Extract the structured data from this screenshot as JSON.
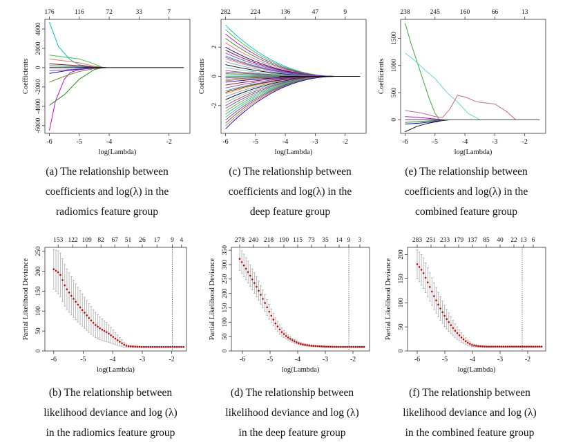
{
  "chart_data": [
    {
      "id": "a",
      "type": "line",
      "xlabel": "log(Lambda)",
      "ylabel": "Coefficients",
      "xlim": [
        -6.15,
        -1.3
      ],
      "ylim": [
        -6800,
        5000
      ],
      "xticks": [
        "-6",
        "-5",
        "-4",
        "-2"
      ],
      "xtick_values": [
        -6,
        -5,
        -4,
        -2
      ],
      "yticks": [
        "-6000",
        "-4000",
        "-2000",
        "0",
        "2000",
        "4000"
      ],
      "ytick_values": [
        -6000,
        -4000,
        -2000,
        0,
        2000,
        4000
      ],
      "top_labels": [
        "176",
        "116",
        "72",
        "33",
        "7"
      ],
      "top_values": [
        -6,
        -5,
        -4,
        -3,
        -2
      ],
      "series": [
        {
          "color": "#00bfc4",
          "x": [
            -6,
            -5.7,
            -5.3,
            -5,
            -4.6,
            -4.2
          ],
          "y": [
            4700,
            2200,
            800,
            300,
            80,
            0
          ]
        },
        {
          "color": "#33cc33",
          "x": [
            -6,
            -5.5,
            -5,
            -4.6,
            -4.2
          ],
          "y": [
            1300,
            1100,
            900,
            500,
            0
          ]
        },
        {
          "color": "#cc00cc",
          "x": [
            -6,
            -5.8,
            -5.5,
            -5.3,
            -5,
            -4.5,
            -4.2
          ],
          "y": [
            -6500,
            -3500,
            -1200,
            -500,
            -200,
            -50,
            0
          ]
        },
        {
          "color": "#228b22",
          "x": [
            -6,
            -5.5,
            -5,
            -4.5,
            -4.2
          ],
          "y": [
            -3900,
            -2800,
            -1200,
            -200,
            0
          ]
        },
        {
          "color": "#6b8e23",
          "x": [
            -6,
            -5.5,
            -5,
            -4.5,
            -4.1
          ],
          "y": [
            -1500,
            -900,
            -400,
            -100,
            0
          ]
        },
        {
          "color": "#ff6666",
          "x": [
            -6,
            -5.5,
            -5,
            -4.5,
            -4.1
          ],
          "y": [
            900,
            700,
            500,
            150,
            0
          ]
        },
        {
          "color": "#0000cc",
          "x": [
            -6,
            -5.5,
            -5,
            -4.5,
            -4.1
          ],
          "y": [
            -600,
            -350,
            -150,
            -30,
            0
          ]
        },
        {
          "color": "#990000",
          "x": [
            -6,
            -5.5,
            -5,
            -4.5,
            -4.1
          ],
          "y": [
            400,
            300,
            200,
            60,
            0
          ]
        },
        {
          "color": "#9933ff",
          "x": [
            -6,
            -5.5,
            -5,
            -4.5,
            -4.1
          ],
          "y": [
            -300,
            -250,
            -120,
            -20,
            0
          ]
        },
        {
          "color": "#009999",
          "x": [
            -6,
            -5.5,
            -5,
            -4.5,
            -4.1
          ],
          "y": [
            200,
            150,
            80,
            20,
            0
          ]
        },
        {
          "color": "#000000",
          "x": [
            -6,
            -4.0,
            -1.5
          ],
          "y": [
            0,
            0,
            0
          ]
        }
      ]
    },
    {
      "id": "c",
      "type": "line",
      "xlabel": "log(Lambda)",
      "ylabel": "Coefficients",
      "xlim": [
        -6.15,
        -1.3
      ],
      "ylim": [
        -3.9,
        3.9
      ],
      "xticks": [
        "-6",
        "-5",
        "-4",
        "-3",
        "-2"
      ],
      "xtick_values": [
        -6,
        -5,
        -4,
        -3,
        -2
      ],
      "yticks": [
        "-2",
        "0",
        "2"
      ],
      "ytick_values": [
        -2,
        0,
        2
      ],
      "top_labels": [
        "282",
        "224",
        "136",
        "47",
        "9"
      ],
      "top_values": [
        -6,
        -5,
        -4,
        -3,
        -2
      ],
      "bundle": {
        "count": 40,
        "x_start": -6,
        "x_end": -2.2,
        "start_values": [
          3.5,
          3.2,
          2.9,
          2.6,
          2.3,
          2.0,
          1.8,
          1.6,
          1.4,
          1.2,
          1.0,
          0.8,
          0.6,
          0.4,
          0.3,
          0.2,
          0.1,
          0.0,
          -0.1,
          -0.2,
          -0.3,
          -0.4,
          -0.6,
          -0.8,
          -1.0,
          -1.2,
          -1.4,
          -1.6,
          -1.8,
          -2.0,
          -2.2,
          -2.4,
          -2.6,
          -2.8,
          -3.0,
          -3.2,
          -3.4,
          -3.6,
          -1.1,
          1.3
        ],
        "colors": [
          "#00bfc4",
          "#33cc33",
          "#cc00cc",
          "#228b22",
          "#ff6666",
          "#0000cc",
          "#990000",
          "#9933ff",
          "#009999",
          "#ff9900",
          "#6699ff",
          "#000000",
          "#66cc99",
          "#cc3366",
          "#3366cc",
          "#999900"
        ]
      }
    },
    {
      "id": "e",
      "type": "line",
      "xlabel": "log(Lambda)",
      "ylabel": "Coefficients",
      "xlim": [
        -6.15,
        -1.3
      ],
      "ylim": [
        -250,
        1850
      ],
      "xticks": [
        "-6",
        "-5",
        "-4",
        "-3",
        "-2"
      ],
      "xtick_values": [
        -6,
        -5,
        -4,
        -3,
        -2
      ],
      "yticks": [
        "0",
        "500",
        "1000",
        "1500"
      ],
      "ytick_values": [
        0,
        500,
        1000,
        1500
      ],
      "top_labels": [
        "238",
        "245",
        "160",
        "66",
        "13"
      ],
      "top_values": [
        -6,
        -5,
        -4,
        -3,
        -2
      ],
      "series": [
        {
          "color": "#33aa33",
          "x": [
            -6,
            -5.8,
            -5.5,
            -5.2,
            -5,
            -4.85
          ],
          "y": [
            1780,
            1400,
            900,
            400,
            120,
            0
          ]
        },
        {
          "color": "#66ddcc",
          "x": [
            -6,
            -5.7,
            -5.3,
            -5,
            -4.6,
            -4.2,
            -3.9,
            -3.5
          ],
          "y": [
            1230,
            1100,
            900,
            760,
            500,
            300,
            120,
            0
          ]
        },
        {
          "color": "#cc6688",
          "x": [
            -6,
            -5.5,
            -5,
            -4.75,
            -4.5,
            -4.25,
            -4.0,
            -3.6,
            -3.0,
            -2.6,
            -2.3
          ],
          "y": [
            170,
            130,
            60,
            40,
            200,
            450,
            420,
            330,
            290,
            150,
            0
          ]
        },
        {
          "color": "#000000",
          "x": [
            -6,
            -5.6,
            -5.2,
            -4.8,
            -4.5
          ],
          "y": [
            -220,
            -120,
            -60,
            -20,
            0
          ]
        },
        {
          "color": "#0000cc",
          "x": [
            -6,
            -5.5,
            -5,
            -4.6
          ],
          "y": [
            -80,
            -60,
            -30,
            0
          ]
        },
        {
          "color": "#228b22",
          "x": [
            -6,
            -5.5,
            -5,
            -4.5
          ],
          "y": [
            -50,
            -30,
            -15,
            0
          ]
        },
        {
          "color": "#cc00cc",
          "x": [
            -6,
            -5.5,
            -5,
            -4.7
          ],
          "y": [
            60,
            40,
            15,
            0
          ]
        },
        {
          "color": "#444444",
          "x": [
            -6,
            -4.0,
            -1.5
          ],
          "y": [
            0,
            0,
            0
          ]
        }
      ]
    },
    {
      "id": "b",
      "type": "errorbar",
      "xlabel": "log(Lambda)",
      "ylabel": "Partial Likelihood Deviance",
      "xlim": [
        -6.3,
        -1.5
      ],
      "ylim": [
        0,
        260
      ],
      "xticks": [
        "-6",
        "-5",
        "-4",
        "-3",
        "-2"
      ],
      "xtick_values": [
        -6,
        -5,
        -4,
        -3,
        -2
      ],
      "yticks": [
        "0",
        "50",
        "100",
        "150",
        "200",
        "250"
      ],
      "ytick_values": [
        0,
        50,
        100,
        150,
        200,
        250
      ],
      "top_labels": [
        "153",
        "122",
        "109",
        "82",
        "67",
        "51",
        "26",
        "17",
        "9",
        "4"
      ],
      "top_values": [
        -5.85,
        -5.35,
        -4.88,
        -4.4,
        -3.93,
        -3.48,
        -3.0,
        -2.5,
        -1.98,
        -1.67
      ],
      "vline": -1.98,
      "curve": {
        "x": [
          -6.0,
          -5.8,
          -5.6,
          -5.4,
          -5.2,
          -5.0,
          -4.8,
          -4.6,
          -4.4,
          -4.2,
          -4.0,
          -3.8,
          -3.6,
          -3.5,
          -3.3,
          -3.0,
          -2.5,
          -2.0,
          -1.6
        ],
        "y": [
          205,
          195,
          160,
          138,
          118,
          100,
          82,
          66,
          55,
          47,
          36,
          25,
          15,
          12,
          11,
          10,
          10,
          10,
          10
        ],
        "err": [
          50,
          55,
          52,
          48,
          44,
          40,
          36,
          32,
          28,
          24,
          18,
          12,
          6,
          3,
          2,
          1,
          1,
          1,
          1
        ]
      }
    },
    {
      "id": "d",
      "type": "errorbar",
      "xlabel": "log(Lambda)",
      "ylabel": "Partial Likelihood Deviance",
      "xlim": [
        -6.4,
        -1.4
      ],
      "ylim": [
        0,
        360
      ],
      "xticks": [
        "-6",
        "-5",
        "-4",
        "-3",
        "-2"
      ],
      "xtick_values": [
        -6,
        -5,
        -4,
        -3,
        -2
      ],
      "yticks": [
        "0",
        "50",
        "100",
        "150",
        "200",
        "250",
        "300",
        "350"
      ],
      "ytick_values": [
        0,
        50,
        100,
        150,
        200,
        250,
        300,
        350
      ],
      "top_labels": [
        "278",
        "240",
        "218",
        "190",
        "115",
        "73",
        "35",
        "14",
        "9",
        "3"
      ],
      "top_values": [
        -6.1,
        -5.6,
        -5.05,
        -4.5,
        -4.0,
        -3.5,
        -3.0,
        -2.5,
        -2.15,
        -1.75
      ],
      "vline": -2.15,
      "curve": {
        "x": [
          -6.1,
          -5.8,
          -5.5,
          -5.2,
          -5.0,
          -4.8,
          -4.6,
          -4.4,
          -4.2,
          -4.0,
          -3.8,
          -3.5,
          -3.0,
          -2.5,
          -2.0,
          -1.6
        ],
        "y": [
          320,
          275,
          225,
          170,
          130,
          95,
          68,
          50,
          38,
          28,
          22,
          18,
          15,
          14,
          14,
          14
        ],
        "err": [
          40,
          38,
          35,
          30,
          25,
          20,
          15,
          10,
          7,
          5,
          4,
          3,
          2,
          2,
          2,
          2
        ]
      }
    },
    {
      "id": "f",
      "type": "errorbar",
      "xlabel": "log(Lambda)",
      "ylabel": "Partial Likelihood Deviance",
      "xlim": [
        -6.35,
        -1.35
      ],
      "ylim": [
        0,
        215
      ],
      "xticks": [
        "-6",
        "-5",
        "-4",
        "-3",
        "-2"
      ],
      "xtick_values": [
        -6,
        -5,
        -4,
        -3,
        -2
      ],
      "yticks": [
        "0",
        "50",
        "100",
        "150",
        "200"
      ],
      "ytick_values": [
        0,
        50,
        100,
        150,
        200
      ],
      "top_labels": [
        "283",
        "251",
        "233",
        "179",
        "137",
        "85",
        "40",
        "22",
        "13",
        "6"
      ],
      "top_values": [
        -6.0,
        -5.5,
        -5.0,
        -4.5,
        -4.0,
        -3.5,
        -3.0,
        -2.5,
        -2.15,
        -1.8
      ],
      "vline": -2.2,
      "curve": {
        "x": [
          -6.0,
          -5.8,
          -5.6,
          -5.4,
          -5.2,
          -5.0,
          -4.8,
          -4.6,
          -4.4,
          -4.2,
          -4.0,
          -3.8,
          -3.5,
          -3.0,
          -2.5,
          -2.0,
          -1.5
        ],
        "y": [
          180,
          165,
          140,
          115,
          92,
          72,
          55,
          40,
          28,
          18,
          12,
          10,
          9,
          9,
          9,
          9,
          9
        ],
        "err": [
          30,
          32,
          30,
          28,
          25,
          22,
          18,
          14,
          10,
          6,
          3,
          2,
          1,
          1,
          1,
          1,
          1
        ]
      }
    }
  ],
  "captions": {
    "a": [
      "(a) The relationship between",
      "coefficients and log(λ) in the",
      "radiomics feature group"
    ],
    "c": [
      "(c) The relationship between",
      "coefficients and log(λ) in the",
      "deep feature group"
    ],
    "e": [
      "(e) The relationship between",
      "coefficients and log(λ) in the",
      "combined feature group"
    ],
    "b": [
      "(b) The relationship between",
      "likelihood deviance and log (λ)",
      "in the radiomics feature group"
    ],
    "d": [
      "(d) The relationship between",
      "likelihood deviance and log (λ)",
      "in the deep feature group"
    ],
    "f": [
      "(f) The relationship between",
      "likelihood deviance and log (λ)",
      "in the combined feature group"
    ]
  }
}
